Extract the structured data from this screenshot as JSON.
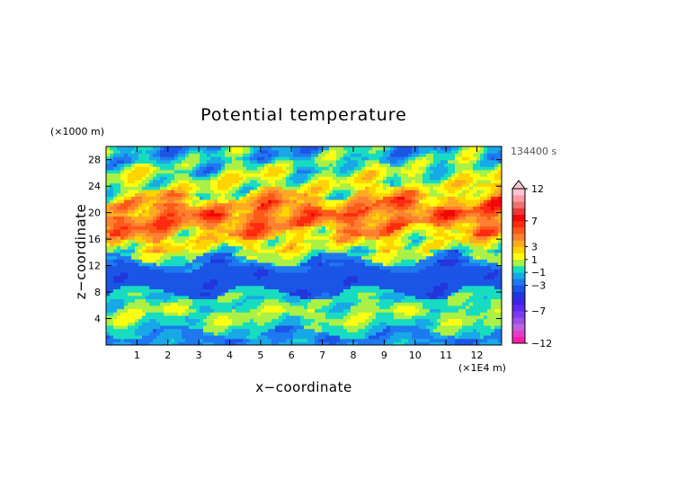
{
  "chart_data": {
    "type": "heatmap",
    "title": "Potential temperature",
    "xlabel": "x−coordinate",
    "ylabel": "z−coordinate",
    "x_unit": "(×1E4 m)",
    "y_unit": "(×1000 m)",
    "time_label": "134400 s",
    "xlim": [
      0,
      12.8
    ],
    "ylim": [
      0,
      30
    ],
    "x_ticks": [
      1,
      2,
      3,
      4,
      5,
      6,
      7,
      8,
      9,
      10,
      11,
      12
    ],
    "y_ticks": [
      4,
      8,
      12,
      16,
      20,
      24,
      28
    ],
    "colorbar": {
      "levels": [
        -12,
        -11,
        -10,
        -9,
        -8,
        -7,
        -6,
        -5,
        -4,
        -3,
        -2,
        -1,
        0,
        1,
        2,
        3,
        4,
        5,
        6,
        7,
        8,
        9,
        10,
        11,
        12
      ],
      "colors": [
        "#ff1ca8",
        "#e23ec8",
        "#c060e0",
        "#9a50e8",
        "#7a3cf0",
        "#5a2af0",
        "#3a24e6",
        "#2236dc",
        "#1b55e6",
        "#1e78f0",
        "#18a8e8",
        "#18dcc0",
        "#aaf046",
        "#ffff10",
        "#ffd400",
        "#ffaa22",
        "#ff8030",
        "#ff5a18",
        "#ff2a10",
        "#f00808",
        "#e63a38",
        "#f07070",
        "#ff9aa6",
        "#ffc4d0"
      ],
      "tick_labels": [
        "12",
        "7",
        "3",
        "1",
        "−1",
        "−3",
        "−7",
        "−12"
      ],
      "tick_values": [
        12,
        7,
        3,
        1,
        -1,
        -3,
        -7,
        -12
      ]
    },
    "layers": [
      {
        "z": [
          0,
          2
        ],
        "value": -2.4
      },
      {
        "z": [
          2,
          4
        ],
        "value": -0.4
      },
      {
        "z": [
          4,
          6
        ],
        "value": 0.6
      },
      {
        "z": [
          6,
          8
        ],
        "value": -0.6
      },
      {
        "z": [
          8,
          12
        ],
        "value": -3.6
      },
      {
        "z": [
          12,
          13
        ],
        "value": -2.2
      },
      {
        "z": [
          13,
          15
        ],
        "value": 0.4
      },
      {
        "z": [
          15,
          17
        ],
        "value": 2.1
      },
      {
        "z": [
          17,
          19
        ],
        "value": 4.2
      },
      {
        "z": [
          19,
          21
        ],
        "value": 5.2
      },
      {
        "z": [
          21,
          23
        ],
        "value": 3.2
      },
      {
        "z": [
          23,
          25
        ],
        "value": 1.0
      },
      {
        "z": [
          25,
          27
        ],
        "value": 0.6
      },
      {
        "z": [
          27,
          29
        ],
        "value": -0.8
      },
      {
        "z": [
          29,
          30
        ],
        "value": -1.6
      }
    ]
  }
}
